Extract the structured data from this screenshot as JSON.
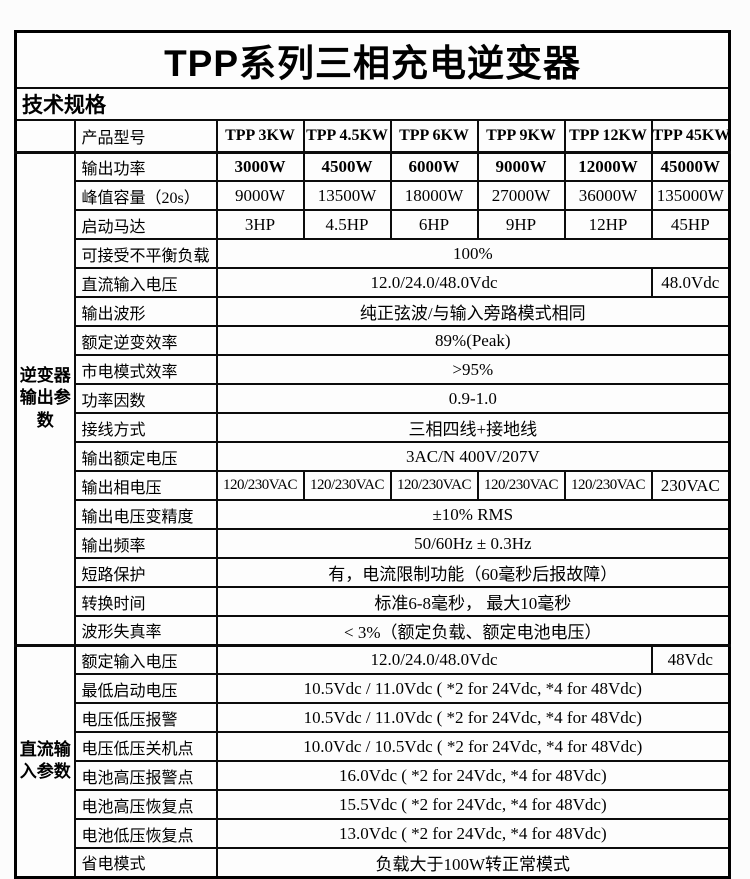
{
  "page_title": "TPP系列三相充电逆变器",
  "section_label": "技术规格",
  "colors": {
    "border": "#000000",
    "text": "#000000",
    "background": "#fcfcfc"
  },
  "table": {
    "rows": [
      {
        "name": "row-product-model",
        "cls": "hdr",
        "cells": [
          {
            "t": "",
            "cls": "corner",
            "n": "corner-cell"
          },
          {
            "t": "产品型号",
            "cls": "param",
            "n": "product-model-label"
          },
          {
            "t": "TPP 3KW",
            "cls": "model",
            "n": "model-name"
          },
          {
            "t": "TPP 4.5KW",
            "cls": "model",
            "n": "model-name"
          },
          {
            "t": "TPP 6KW",
            "cls": "model",
            "n": "model-name"
          },
          {
            "t": "TPP 9KW",
            "cls": "model",
            "n": "model-name"
          },
          {
            "t": "TPP 12KW",
            "cls": "model",
            "n": "model-name"
          },
          {
            "t": "TPP 45KW",
            "cls": "model",
            "n": "model-name"
          }
        ]
      },
      {
        "name": "row-output-power",
        "cls": "thick",
        "cells": [
          {
            "t": "逆变器输出参数",
            "cls": "group",
            "rs": 17,
            "n": "group-label-inverter-output"
          },
          {
            "t": "输出功率",
            "cls": "param"
          },
          {
            "t": "3000W",
            "cls": "val bold"
          },
          {
            "t": "4500W",
            "cls": "val bold"
          },
          {
            "t": "6000W",
            "cls": "val bold"
          },
          {
            "t": "9000W",
            "cls": "val bold"
          },
          {
            "t": "12000W",
            "cls": "val bold"
          },
          {
            "t": "45000W",
            "cls": "val bold"
          }
        ]
      },
      {
        "name": "row-peak-capacity",
        "cells": [
          {
            "t": "峰值容量（20s）",
            "cls": "param"
          },
          {
            "t": "9000W"
          },
          {
            "t": "13500W"
          },
          {
            "t": "18000W"
          },
          {
            "t": "27000W"
          },
          {
            "t": "36000W"
          },
          {
            "t": "135000W"
          }
        ]
      },
      {
        "name": "row-motor-start",
        "cells": [
          {
            "t": "启动马达",
            "cls": "param"
          },
          {
            "t": "3HP"
          },
          {
            "t": "4.5HP"
          },
          {
            "t": "6HP"
          },
          {
            "t": "9HP"
          },
          {
            "t": "12HP"
          },
          {
            "t": "45HP"
          }
        ]
      },
      {
        "name": "row-unbalanced-load",
        "cells": [
          {
            "t": "可接受不平衡负载",
            "cls": "param"
          },
          {
            "t": "100%",
            "cs": 6
          }
        ]
      },
      {
        "name": "row-dc-input-voltage",
        "cells": [
          {
            "t": "直流输入电压",
            "cls": "param"
          },
          {
            "t": "12.0/24.0/48.0Vdc",
            "cs": 5
          },
          {
            "t": "48.0Vdc"
          }
        ]
      },
      {
        "name": "row-output-waveform",
        "cells": [
          {
            "t": "输出波形",
            "cls": "param"
          },
          {
            "t": "纯正弦波/与输入旁路模式相同",
            "cs": 6
          }
        ]
      },
      {
        "name": "row-rated-inverter-efficiency",
        "cells": [
          {
            "t": "额定逆变效率",
            "cls": "param"
          },
          {
            "t": "89%(Peak)",
            "cs": 6
          }
        ]
      },
      {
        "name": "row-mains-mode-efficiency",
        "cells": [
          {
            "t": "市电模式效率",
            "cls": "param"
          },
          {
            "t": ">95%",
            "cs": 6
          }
        ]
      },
      {
        "name": "row-power-factor",
        "cells": [
          {
            "t": "功率因数",
            "cls": "param"
          },
          {
            "t": "0.9-1.0",
            "cs": 6
          }
        ]
      },
      {
        "name": "row-wiring-method",
        "cells": [
          {
            "t": "接线方式",
            "cls": "param"
          },
          {
            "t": "三相四线+接地线",
            "cs": 6
          }
        ]
      },
      {
        "name": "row-output-rated-voltage",
        "cells": [
          {
            "t": "输出额定电压",
            "cls": "param"
          },
          {
            "t": "3AC/N 400V/207V",
            "cs": 6
          }
        ]
      },
      {
        "name": "row-output-phase-voltage",
        "cells": [
          {
            "t": "输出相电压",
            "cls": "param"
          },
          {
            "t": "120/230VAC",
            "cls": "val tight"
          },
          {
            "t": "120/230VAC",
            "cls": "val tight"
          },
          {
            "t": "120/230VAC",
            "cls": "val tight"
          },
          {
            "t": "120/230VAC",
            "cls": "val tight"
          },
          {
            "t": "120/230VAC",
            "cls": "val tight"
          },
          {
            "t": "230VAC"
          }
        ]
      },
      {
        "name": "row-output-voltage-accuracy",
        "cells": [
          {
            "t": "输出电压变精度",
            "cls": "param"
          },
          {
            "t": "±10% RMS",
            "cs": 6
          }
        ]
      },
      {
        "name": "row-output-frequency",
        "cells": [
          {
            "t": "输出频率",
            "cls": "param"
          },
          {
            "t": "50/60Hz ± 0.3Hz",
            "cs": 6
          }
        ]
      },
      {
        "name": "row-short-circuit-protection",
        "cells": [
          {
            "t": "短路保护",
            "cls": "param"
          },
          {
            "t": "有，电流限制功能（60毫秒后报故障）",
            "cs": 6
          }
        ]
      },
      {
        "name": "row-transfer-time",
        "cells": [
          {
            "t": "转换时间",
            "cls": "param"
          },
          {
            "t": "标准6-8毫秒， 最大10毫秒",
            "cs": 6
          }
        ]
      },
      {
        "name": "row-waveform-distortion",
        "cells": [
          {
            "t": "波形失真率",
            "cls": "param"
          },
          {
            "t": "< 3%（额定负载、额定电池电压）",
            "cs": 6
          }
        ]
      },
      {
        "name": "row-rated-input-voltage",
        "cls": "thick",
        "cells": [
          {
            "t": "直流输入参数",
            "cls": "group",
            "rs": 8,
            "n": "group-label-dc-input"
          },
          {
            "t": "额定输入电压",
            "cls": "param"
          },
          {
            "t": "12.0/24.0/48.0Vdc",
            "cs": 5
          },
          {
            "t": "48Vdc"
          }
        ]
      },
      {
        "name": "row-min-start-voltage",
        "cells": [
          {
            "t": "最低启动电压",
            "cls": "param"
          },
          {
            "t": "10.5Vdc / 11.0Vdc ( *2 for 24Vdc, *4 for 48Vdc)",
            "cs": 6
          }
        ]
      },
      {
        "name": "row-low-voltage-alarm",
        "cells": [
          {
            "t": "电压低压报警",
            "cls": "param"
          },
          {
            "t": "10.5Vdc / 11.0Vdc ( *2 for 24Vdc, *4 for 48Vdc)",
            "cs": 6
          }
        ]
      },
      {
        "name": "row-low-voltage-shutdown",
        "cells": [
          {
            "t": "电压低压关机点",
            "cls": "param"
          },
          {
            "t": "10.0Vdc / 10.5Vdc ( *2 for 24Vdc, *4 for 48Vdc)",
            "cs": 6
          }
        ]
      },
      {
        "name": "row-battery-high-voltage-alarm",
        "cells": [
          {
            "t": "电池高压报警点",
            "cls": "param"
          },
          {
            "t": "16.0Vdc ( *2 for 24Vdc, *4 for 48Vdc)",
            "cs": 6
          }
        ]
      },
      {
        "name": "row-battery-high-voltage-recovery",
        "cells": [
          {
            "t": "电池高压恢复点",
            "cls": "param"
          },
          {
            "t": "15.5Vdc ( *2 for 24Vdc, *4 for 48Vdc)",
            "cs": 6
          }
        ]
      },
      {
        "name": "row-battery-low-voltage-recovery",
        "cells": [
          {
            "t": "电池低压恢复点",
            "cls": "param"
          },
          {
            "t": "13.0Vdc ( *2 for 24Vdc, *4 for 48Vdc)",
            "cs": 6
          }
        ]
      },
      {
        "name": "row-power-saving-mode",
        "cells": [
          {
            "t": "省电模式",
            "cls": "param"
          },
          {
            "t": "负载大于100W转正常模式",
            "cs": 6
          }
        ]
      }
    ]
  }
}
